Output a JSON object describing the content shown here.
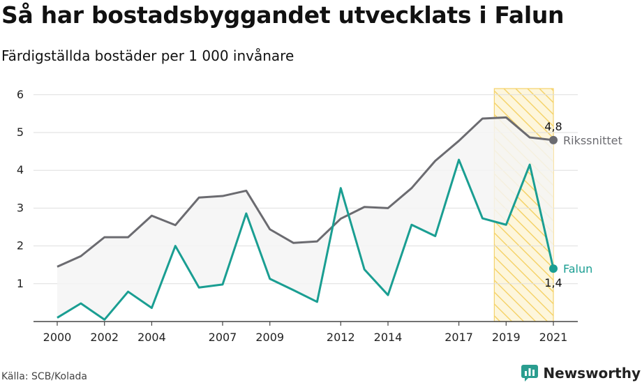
{
  "title": "Så har bostadsbyggandet utvecklats i Falun",
  "subtitle": "Färdigställda bostäder per 1 000 invånare",
  "source": "Källa: SCB/Kolada",
  "brand": "Newsworthy",
  "colors": {
    "falun": "#1a9e92",
    "riket": "#6b6b70",
    "highlight": "#f5d36b",
    "fill": "#f4f4f5",
    "grid": "#dedede"
  },
  "chart_data": {
    "type": "line",
    "x": [
      2000,
      2001,
      2002,
      2003,
      2004,
      2005,
      2006,
      2007,
      2008,
      2009,
      2010,
      2011,
      2012,
      2013,
      2014,
      2015,
      2016,
      2017,
      2018,
      2019,
      2020,
      2021
    ],
    "x_ticks": [
      "2000",
      "2002",
      "2004",
      "2007",
      "2009",
      "2012",
      "2014",
      "2017",
      "2019",
      "2021"
    ],
    "y_ticks": [
      "1",
      "2",
      "3",
      "4",
      "5",
      "6"
    ],
    "ylim": [
      0,
      6.2
    ],
    "highlight_range": [
      2018.5,
      2021
    ],
    "series": [
      {
        "name": "Rikssnittet",
        "key": "riket",
        "values": [
          1.45,
          1.73,
          2.23,
          2.23,
          2.8,
          2.55,
          3.28,
          3.32,
          3.46,
          2.44,
          2.08,
          2.12,
          2.72,
          3.03,
          3.0,
          3.53,
          4.25,
          4.78,
          5.37,
          5.4,
          4.87,
          4.8
        ],
        "end_label": "4,8"
      },
      {
        "name": "Falun",
        "key": "falun",
        "values": [
          0.1,
          0.48,
          0.05,
          0.79,
          0.36,
          2.0,
          0.9,
          0.98,
          2.86,
          1.13,
          0.83,
          0.52,
          3.53,
          1.38,
          0.7,
          2.56,
          2.26,
          4.28,
          2.73,
          2.56,
          4.15,
          1.4
        ],
        "end_label": "1,4"
      }
    ]
  }
}
